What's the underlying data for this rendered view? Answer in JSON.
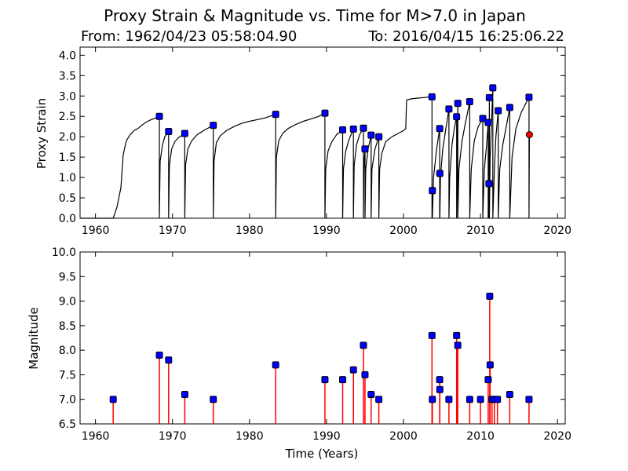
{
  "figure": {
    "title": "Proxy Strain & Magnitude vs. Time for M>7.0 in Japan",
    "subtitle_from": "From: 1962/04/23 05:58:04.90",
    "subtitle_to": "To: 2016/04/15 16:25:06.22"
  },
  "chart_data": [
    {
      "type": "line",
      "panel": "top",
      "xlabel": "",
      "ylabel": "Proxy Strain",
      "xlim": [
        1958,
        2021
      ],
      "ylim": [
        0.0,
        4.2
      ],
      "xticks": [
        1960,
        1970,
        1980,
        1990,
        2000,
        2010,
        2020
      ],
      "yticks": [
        0.0,
        0.5,
        1.0,
        1.5,
        2.0,
        2.5,
        3.0,
        3.5,
        4.0
      ],
      "grid": false,
      "curve_color": "#000000",
      "marker_color": "#0000ff",
      "current_marker_color": "#ff0000",
      "series": [
        {
          "points": [
            [
              1958,
              0.0
            ],
            [
              1962.3,
              0.0
            ],
            [
              1962.8,
              0.28
            ],
            [
              1963.3,
              0.75
            ],
            [
              1963.6,
              1.55
            ],
            [
              1964.0,
              1.9
            ],
            [
              1964.5,
              2.05
            ],
            [
              1965.0,
              2.15
            ],
            [
              1965.5,
              2.2
            ],
            [
              1966.0,
              2.28
            ],
            [
              1966.5,
              2.35
            ],
            [
              1967.0,
              2.4
            ],
            [
              1967.5,
              2.44
            ],
            [
              1968.3,
              2.5
            ],
            [
              1968.3,
              0.0
            ],
            [
              1968.4,
              1.4
            ],
            [
              1968.7,
              1.8
            ],
            [
              1969.0,
              2.0
            ],
            [
              1969.5,
              2.13
            ],
            [
              1969.5,
              0.0
            ],
            [
              1969.6,
              1.3
            ],
            [
              1969.9,
              1.7
            ],
            [
              1970.3,
              1.88
            ],
            [
              1970.8,
              1.98
            ],
            [
              1971.6,
              2.08
            ],
            [
              1971.6,
              0.0
            ],
            [
              1971.7,
              1.3
            ],
            [
              1972.0,
              1.7
            ],
            [
              1972.5,
              1.9
            ],
            [
              1973.2,
              2.05
            ],
            [
              1974.2,
              2.17
            ],
            [
              1975.3,
              2.28
            ],
            [
              1975.3,
              0.0
            ],
            [
              1975.4,
              1.4
            ],
            [
              1975.7,
              1.85
            ],
            [
              1976.2,
              2.02
            ],
            [
              1977.0,
              2.15
            ],
            [
              1978.0,
              2.25
            ],
            [
              1979.0,
              2.33
            ],
            [
              1980.0,
              2.38
            ],
            [
              1981.0,
              2.42
            ],
            [
              1982.0,
              2.46
            ],
            [
              1983.4,
              2.55
            ],
            [
              1983.4,
              0.0
            ],
            [
              1983.5,
              1.5
            ],
            [
              1983.8,
              1.9
            ],
            [
              1984.3,
              2.08
            ],
            [
              1985.0,
              2.2
            ],
            [
              1986.0,
              2.3
            ],
            [
              1987.0,
              2.38
            ],
            [
              1988.0,
              2.44
            ],
            [
              1989.0,
              2.5
            ],
            [
              1989.8,
              2.58
            ],
            [
              1989.8,
              0.0
            ],
            [
              1989.9,
              1.2
            ],
            [
              1990.2,
              1.65
            ],
            [
              1990.7,
              1.88
            ],
            [
              1991.3,
              2.05
            ],
            [
              1992.1,
              2.17
            ],
            [
              1992.1,
              0.0
            ],
            [
              1992.2,
              1.2
            ],
            [
              1992.5,
              1.65
            ],
            [
              1992.9,
              1.92
            ],
            [
              1993.5,
              2.19
            ],
            [
              1993.5,
              0.0
            ],
            [
              1993.6,
              1.3
            ],
            [
              1993.9,
              1.8
            ],
            [
              1994.3,
              2.05
            ],
            [
              1994.8,
              2.21
            ],
            [
              1994.8,
              0.0
            ],
            [
              1994.85,
              1.2
            ],
            [
              1995.0,
              1.7
            ],
            [
              1995.0,
              0.0
            ],
            [
              1995.1,
              1.2
            ],
            [
              1995.4,
              1.7
            ],
            [
              1995.8,
              2.04
            ],
            [
              1995.8,
              0.0
            ],
            [
              1995.9,
              1.2
            ],
            [
              1996.3,
              1.7
            ],
            [
              1996.8,
              2.0
            ],
            [
              1996.8,
              0.0
            ],
            [
              1996.9,
              1.2
            ],
            [
              1997.2,
              1.6
            ],
            [
              1997.7,
              1.88
            ],
            [
              1998.5,
              2.0
            ],
            [
              1999.5,
              2.1
            ],
            [
              2000.0,
              2.15
            ],
            [
              2000.3,
              2.2
            ],
            [
              2000.4,
              2.9
            ],
            [
              2001.0,
              2.93
            ],
            [
              2002.0,
              2.95
            ],
            [
              2003.7,
              2.98
            ],
            [
              2003.7,
              0.0
            ],
            [
              2003.75,
              0.68
            ],
            [
              2003.75,
              0.0
            ],
            [
              2003.9,
              1.0
            ],
            [
              2004.3,
              1.7
            ],
            [
              2004.7,
              2.2
            ],
            [
              2004.7,
              0.0
            ],
            [
              2004.72,
              1.1
            ],
            [
              2004.72,
              0.0
            ],
            [
              2004.8,
              1.0
            ],
            [
              2005.1,
              1.7
            ],
            [
              2005.5,
              2.2
            ],
            [
              2005.9,
              2.68
            ],
            [
              2005.9,
              0.0
            ],
            [
              2006.0,
              1.0
            ],
            [
              2006.3,
              1.8
            ],
            [
              2006.6,
              2.2
            ],
            [
              2006.9,
              2.49
            ],
            [
              2006.9,
              0.0
            ],
            [
              2006.95,
              1.0
            ],
            [
              2007.05,
              2.82
            ],
            [
              2007.05,
              0.0
            ],
            [
              2007.2,
              1.2
            ],
            [
              2007.6,
              1.9
            ],
            [
              2008.0,
              2.3
            ],
            [
              2008.6,
              2.86
            ],
            [
              2008.6,
              0.0
            ],
            [
              2008.8,
              1.2
            ],
            [
              2009.2,
              1.9
            ],
            [
              2009.7,
              2.25
            ],
            [
              2010.3,
              2.45
            ],
            [
              2010.3,
              0.0
            ],
            [
              2010.5,
              1.2
            ],
            [
              2010.8,
              1.8
            ],
            [
              2011.0,
              2.35
            ],
            [
              2011.0,
              0.0
            ],
            [
              2011.1,
              0.85
            ],
            [
              2011.1,
              0.0
            ],
            [
              2011.15,
              2.96
            ],
            [
              2011.15,
              0.0
            ],
            [
              2011.25,
              1.5
            ],
            [
              2011.4,
              2.2
            ],
            [
              2011.6,
              3.2
            ],
            [
              2011.6,
              0.0
            ],
            [
              2011.8,
              1.2
            ],
            [
              2012.0,
              2.0
            ],
            [
              2012.3,
              2.64
            ],
            [
              2012.3,
              0.0
            ],
            [
              2012.5,
              1.2
            ],
            [
              2012.9,
              1.8
            ],
            [
              2013.4,
              2.3
            ],
            [
              2013.8,
              2.72
            ],
            [
              2013.8,
              0.0
            ],
            [
              2014.1,
              1.5
            ],
            [
              2014.6,
              2.2
            ],
            [
              2015.3,
              2.6
            ],
            [
              2016.3,
              2.97
            ],
            [
              2016.3,
              0.0
            ],
            [
              2016.35,
              2.05
            ]
          ]
        }
      ],
      "events": [
        [
          1968.3,
          2.5
        ],
        [
          1969.5,
          2.13
        ],
        [
          1971.6,
          2.08
        ],
        [
          1975.3,
          2.28
        ],
        [
          1983.4,
          2.55
        ],
        [
          1989.8,
          2.58
        ],
        [
          1992.1,
          2.17
        ],
        [
          1993.5,
          2.19
        ],
        [
          1994.8,
          2.21
        ],
        [
          1995.0,
          1.7
        ],
        [
          1995.8,
          2.04
        ],
        [
          1996.8,
          2.0
        ],
        [
          2003.7,
          2.98
        ],
        [
          2003.75,
          0.68
        ],
        [
          2004.7,
          2.2
        ],
        [
          2004.72,
          1.1
        ],
        [
          2005.9,
          2.68
        ],
        [
          2006.9,
          2.49
        ],
        [
          2007.05,
          2.82
        ],
        [
          2008.6,
          2.86
        ],
        [
          2010.3,
          2.45
        ],
        [
          2011.0,
          2.35
        ],
        [
          2011.1,
          0.85
        ],
        [
          2011.15,
          2.96
        ],
        [
          2011.6,
          3.2
        ],
        [
          2012.3,
          2.64
        ],
        [
          2013.8,
          2.72
        ],
        [
          2016.3,
          2.97
        ]
      ],
      "current": [
        2016.35,
        2.05
      ]
    },
    {
      "type": "scatter",
      "panel": "bottom",
      "xlabel": "Time (Years)",
      "ylabel": "Magnitude",
      "xlim": [
        1958,
        2021
      ],
      "ylim": [
        6.5,
        10.0
      ],
      "xticks": [
        1960,
        1970,
        1980,
        1990,
        2000,
        2010,
        2020
      ],
      "yticks": [
        6.5,
        7.0,
        7.5,
        8.0,
        8.5,
        9.0,
        9.5,
        10.0
      ],
      "grid": false,
      "stem_color": "#ff0000",
      "marker_color": "#0000ff",
      "points": [
        [
          1962.3,
          7.0
        ],
        [
          1968.3,
          7.9
        ],
        [
          1969.5,
          7.8
        ],
        [
          1971.6,
          7.1
        ],
        [
          1975.3,
          7.0
        ],
        [
          1983.4,
          7.7
        ],
        [
          1989.8,
          7.4
        ],
        [
          1992.1,
          7.4
        ],
        [
          1993.5,
          7.6
        ],
        [
          1994.8,
          8.1
        ],
        [
          1995.0,
          7.5
        ],
        [
          1995.8,
          7.1
        ],
        [
          1996.8,
          7.0
        ],
        [
          2003.7,
          8.3
        ],
        [
          2003.75,
          7.0
        ],
        [
          2004.7,
          7.4
        ],
        [
          2004.72,
          7.2
        ],
        [
          2005.9,
          7.0
        ],
        [
          2006.9,
          8.3
        ],
        [
          2007.05,
          8.1
        ],
        [
          2008.6,
          7.0
        ],
        [
          2010.0,
          7.0
        ],
        [
          2011.0,
          7.4
        ],
        [
          2011.2,
          9.1
        ],
        [
          2011.25,
          7.7
        ],
        [
          2011.5,
          7.0
        ],
        [
          2011.8,
          7.0
        ],
        [
          2012.2,
          7.0
        ],
        [
          2013.8,
          7.1
        ],
        [
          2016.3,
          7.0
        ]
      ]
    }
  ]
}
